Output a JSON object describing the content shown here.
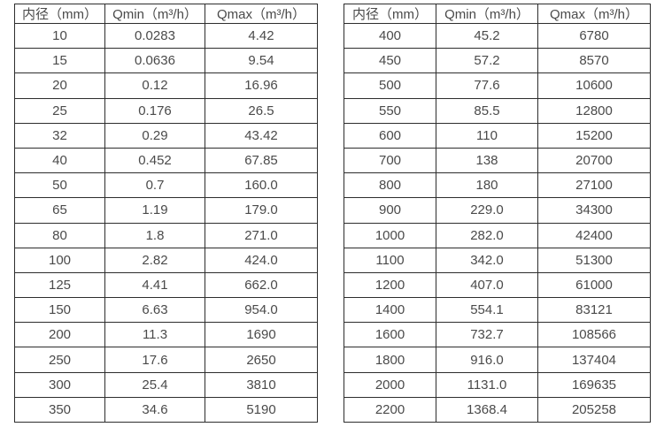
{
  "page": {
    "background": "#ffffff",
    "border_color": "#2d2d2d",
    "text_color": "#4a4a4a"
  },
  "left_table": {
    "headers": [
      "内径（mm）",
      "Qmin（m³/h）",
      "Qmax（m³/h）"
    ],
    "rows": [
      [
        "10",
        "0.0283",
        "4.42"
      ],
      [
        "15",
        "0.0636",
        "9.54"
      ],
      [
        "20",
        "0.12",
        "16.96"
      ],
      [
        "25",
        "0.176",
        "26.5"
      ],
      [
        "32",
        "0.29",
        "43.42"
      ],
      [
        "40",
        "0.452",
        "67.85"
      ],
      [
        "50",
        "0.7",
        "160.0"
      ],
      [
        "65",
        "1.19",
        "179.0"
      ],
      [
        "80",
        "1.8",
        "271.0"
      ],
      [
        "100",
        "2.82",
        "424.0"
      ],
      [
        "125",
        "4.41",
        "662.0"
      ],
      [
        "150",
        "6.63",
        "954.0"
      ],
      [
        "200",
        "11.3",
        "1690"
      ],
      [
        "250",
        "17.6",
        "2650"
      ],
      [
        "300",
        "25.4",
        "3810"
      ],
      [
        "350",
        "34.6",
        "5190"
      ]
    ]
  },
  "right_table": {
    "headers": [
      "内径（mm）",
      "Qmin（m³/h）",
      "Qmax（m³/h）"
    ],
    "rows": [
      [
        "400",
        "45.2",
        "6780"
      ],
      [
        "450",
        "57.2",
        "8570"
      ],
      [
        "500",
        "77.6",
        "10600"
      ],
      [
        "550",
        "85.5",
        "12800"
      ],
      [
        "600",
        "110",
        "15200"
      ],
      [
        "700",
        "138",
        "20700"
      ],
      [
        "800",
        "180",
        "27100"
      ],
      [
        "900",
        "229.0",
        "34300"
      ],
      [
        "1000",
        "282.0",
        "42400"
      ],
      [
        "1100",
        "342.0",
        "51300"
      ],
      [
        "1200",
        "407.0",
        "61000"
      ],
      [
        "1400",
        "554.1",
        "83121"
      ],
      [
        "1600",
        "732.7",
        "108566"
      ],
      [
        "1800",
        "916.0",
        "137404"
      ],
      [
        "2000",
        "1131.0",
        "169635"
      ],
      [
        "2200",
        "1368.4",
        "205258"
      ]
    ]
  }
}
